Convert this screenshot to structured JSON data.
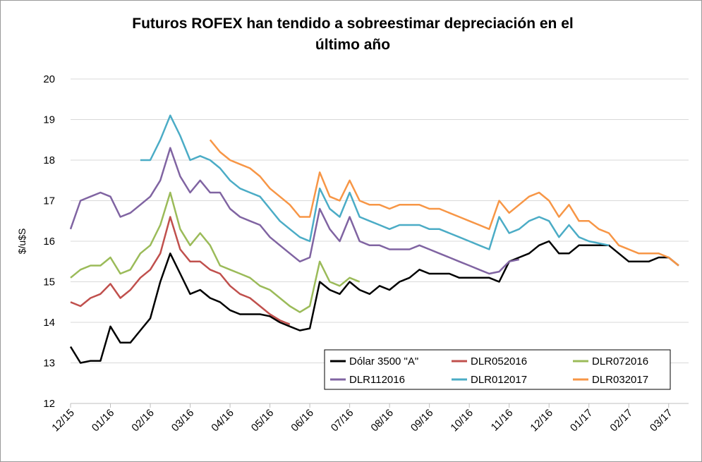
{
  "chart_data": {
    "type": "line",
    "title": "Futuros ROFEX han tendido a sobreestimar depreciación en el último año",
    "y_label": "$/u$S",
    "x": [
      0,
      0.25,
      0.5,
      0.75,
      1,
      1.25,
      1.5,
      1.75,
      2,
      2.25,
      2.5,
      2.75,
      3,
      3.25,
      3.5,
      3.75,
      4,
      4.25,
      4.5,
      4.75,
      5,
      5.25,
      5.5,
      5.75,
      6,
      6.25,
      6.5,
      6.75,
      7,
      7.25,
      7.5,
      7.75,
      8,
      8.25,
      8.5,
      8.75,
      9,
      9.25,
      9.5,
      9.75,
      10,
      10.25,
      10.5,
      10.75,
      11,
      11.25,
      11.5,
      11.75,
      12,
      12.25,
      12.5,
      12.75,
      13,
      13.25,
      13.5,
      13.75,
      14,
      14.25,
      14.5,
      14.75,
      15,
      15.25,
      15.5
    ],
    "xlim": [
      0,
      15.5
    ],
    "xticks": [
      {
        "value": 0,
        "label": "12/15"
      },
      {
        "value": 1,
        "label": "01/16"
      },
      {
        "value": 2,
        "label": "02/16"
      },
      {
        "value": 3,
        "label": "03/16"
      },
      {
        "value": 4,
        "label": "04/16"
      },
      {
        "value": 5,
        "label": "05/16"
      },
      {
        "value": 6,
        "label": "06/16"
      },
      {
        "value": 7,
        "label": "07/16"
      },
      {
        "value": 8,
        "label": "08/16"
      },
      {
        "value": 9,
        "label": "09/16"
      },
      {
        "value": 10,
        "label": "10/16"
      },
      {
        "value": 11,
        "label": "11/16"
      },
      {
        "value": 12,
        "label": "12/16"
      },
      {
        "value": 13,
        "label": "01/17"
      },
      {
        "value": 14,
        "label": "02/17"
      },
      {
        "value": 15,
        "label": "03/17"
      }
    ],
    "ylim": [
      12,
      20
    ],
    "yticks": [
      12,
      13,
      14,
      15,
      16,
      17,
      18,
      19,
      20
    ],
    "grid": true,
    "legend": "bottom-right",
    "series": [
      {
        "name": "Dólar 3500 \"A\"",
        "color": "#000000",
        "values": [
          13.4,
          13.0,
          13.05,
          13.05,
          13.9,
          13.5,
          13.5,
          13.8,
          14.1,
          15.0,
          15.7,
          15.2,
          14.7,
          14.8,
          14.6,
          14.5,
          14.3,
          14.2,
          14.2,
          14.2,
          14.15,
          14.0,
          13.9,
          13.8,
          13.85,
          15.0,
          14.8,
          14.7,
          15.0,
          14.8,
          14.7,
          14.9,
          14.8,
          15.0,
          15.1,
          15.3,
          15.2,
          15.2,
          15.2,
          15.1,
          15.1,
          15.1,
          15.1,
          15.0,
          15.5,
          15.6,
          15.7,
          15.9,
          16.0,
          15.7,
          15.7,
          15.9,
          15.9,
          15.9,
          15.9,
          15.7,
          15.5,
          15.5,
          15.5,
          15.6,
          15.6,
          15.4,
          null
        ]
      },
      {
        "name": "DLR052016",
        "color": "#c0504d",
        "values": [
          14.5,
          14.4,
          14.6,
          14.7,
          14.95,
          14.6,
          14.8,
          15.1,
          15.3,
          15.7,
          16.6,
          15.8,
          15.5,
          15.5,
          15.3,
          15.2,
          14.9,
          14.7,
          14.6,
          14.4,
          14.2,
          14.05,
          13.95,
          null,
          null,
          null,
          null,
          null,
          null,
          null,
          null,
          null,
          null,
          null,
          null,
          null,
          null,
          null,
          null,
          null,
          null,
          null,
          null,
          null,
          null,
          null,
          null,
          null,
          null,
          null,
          null,
          null,
          null,
          null,
          null,
          null,
          null,
          null,
          null,
          null,
          null,
          null,
          null
        ]
      },
      {
        "name": "DLR072016",
        "color": "#9bbb59",
        "values": [
          15.1,
          15.3,
          15.4,
          15.4,
          15.6,
          15.2,
          15.3,
          15.7,
          15.9,
          16.4,
          17.2,
          16.3,
          15.9,
          16.2,
          15.9,
          15.4,
          15.3,
          15.2,
          15.1,
          14.9,
          14.8,
          14.6,
          14.4,
          14.25,
          14.4,
          15.5,
          15.0,
          14.9,
          15.1,
          15.0,
          null,
          null,
          null,
          null,
          null,
          null,
          null,
          null,
          null,
          null,
          null,
          null,
          null,
          null,
          null,
          null,
          null,
          null,
          null,
          null,
          null,
          null,
          null,
          null,
          null,
          null,
          null,
          null,
          null,
          null,
          null,
          null,
          null
        ]
      },
      {
        "name": "DLR112016",
        "color": "#8064a2",
        "values": [
          16.3,
          17.0,
          17.1,
          17.2,
          17.1,
          16.6,
          16.7,
          16.9,
          17.1,
          17.5,
          18.3,
          17.6,
          17.2,
          17.5,
          17.2,
          17.2,
          16.8,
          16.6,
          16.5,
          16.4,
          16.1,
          15.9,
          15.7,
          15.5,
          15.6,
          16.8,
          16.3,
          16.0,
          16.6,
          16.0,
          15.9,
          15.9,
          15.8,
          15.8,
          15.8,
          15.9,
          15.8,
          15.7,
          15.6,
          15.5,
          15.4,
          15.3,
          15.2,
          15.25,
          15.5,
          15.55,
          null,
          null,
          null,
          null,
          null,
          null,
          null,
          null,
          null,
          null,
          null,
          null,
          null,
          null,
          null,
          null,
          null
        ]
      },
      {
        "name": "DLR012017",
        "color": "#4bacc6",
        "values": [
          null,
          null,
          null,
          null,
          null,
          null,
          null,
          18.0,
          18.0,
          18.5,
          19.1,
          18.6,
          18.0,
          18.1,
          18.0,
          17.8,
          17.5,
          17.3,
          17.2,
          17.1,
          16.8,
          16.5,
          16.3,
          16.1,
          16.0,
          17.3,
          16.8,
          16.6,
          17.2,
          16.6,
          16.5,
          16.4,
          16.3,
          16.4,
          16.4,
          16.4,
          16.3,
          16.3,
          16.2,
          16.1,
          16.0,
          15.9,
          15.8,
          16.6,
          16.2,
          16.3,
          16.5,
          16.6,
          16.5,
          16.1,
          16.4,
          16.1,
          16.0,
          15.95,
          15.9,
          null,
          null,
          null,
          null,
          null,
          null,
          null,
          null
        ]
      },
      {
        "name": "DLR032017",
        "color": "#f79646",
        "values": [
          null,
          null,
          null,
          null,
          null,
          null,
          null,
          null,
          null,
          null,
          null,
          null,
          null,
          null,
          18.5,
          18.2,
          18.0,
          17.9,
          17.8,
          17.6,
          17.3,
          17.1,
          16.9,
          16.6,
          16.6,
          17.7,
          17.1,
          17.0,
          17.5,
          17.0,
          16.9,
          16.9,
          16.8,
          16.9,
          16.9,
          16.9,
          16.8,
          16.8,
          16.7,
          16.6,
          16.5,
          16.4,
          16.3,
          17.0,
          16.7,
          16.9,
          17.1,
          17.2,
          17.0,
          16.6,
          16.9,
          16.5,
          16.5,
          16.3,
          16.2,
          15.9,
          15.8,
          15.7,
          15.7,
          15.7,
          15.6,
          15.4,
          null
        ]
      }
    ]
  }
}
